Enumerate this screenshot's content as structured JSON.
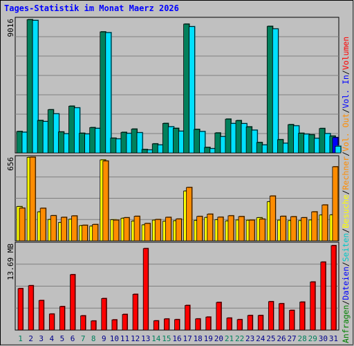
{
  "chart_data": {
    "type": "bar",
    "title": "Tages-Statistik im Monat Maerz 2026",
    "categories": [
      "1",
      "2",
      "3",
      "4",
      "5",
      "6",
      "7",
      "8",
      "9",
      "10",
      "11",
      "12",
      "13",
      "14",
      "15",
      "16",
      "17",
      "18",
      "19",
      "20",
      "21",
      "22",
      "23",
      "24",
      "25",
      "26",
      "27",
      "28",
      "29",
      "30",
      "31"
    ],
    "weekend_days": [
      "1",
      "7",
      "8",
      "14",
      "15",
      "21",
      "22",
      "28",
      "29"
    ],
    "panels": [
      {
        "id": "anfragen",
        "ymax": 9016,
        "ymax_label": "9016",
        "series": [
          {
            "name": "Anfragen",
            "color": "#00805c",
            "values": [
              1440,
              8950,
              2180,
              2900,
              1410,
              3140,
              1320,
              1700,
              8130,
              990,
              1380,
              1600,
              230,
              610,
              1980,
              1650,
              8650,
              1580,
              370,
              1340,
              2270,
              2170,
              1750,
              700,
              8500,
              890,
              1900,
              1320,
              1220,
              1640,
              1130
            ]
          },
          {
            "name": "Dateien",
            "color": "#0000ff",
            "values": [
              null,
              null,
              null,
              null,
              null,
              null,
              null,
              null,
              null,
              null,
              null,
              null,
              null,
              null,
              null,
              null,
              null,
              null,
              null,
              null,
              null,
              null,
              null,
              null,
              null,
              null,
              null,
              null,
              null,
              null,
              1030
            ]
          },
          {
            "name": "Seiten",
            "color": "#00e0ff",
            "values": [
              1390,
              8900,
              2110,
              2630,
              1290,
              3030,
              1270,
              1650,
              8080,
              940,
              1310,
              1360,
              200,
              540,
              1760,
              1460,
              8480,
              1440,
              290,
              1100,
              1980,
              1970,
              1530,
              540,
              8330,
              650,
              1820,
              1260,
              980,
              1300,
              450
            ]
          }
        ]
      },
      {
        "id": "besuche",
        "ymax": 656,
        "ymax_label": "656",
        "series": [
          {
            "name": "Besuche",
            "color": "#ffff00",
            "values": [
              268,
              654,
              227,
              167,
              143,
              169,
              119,
              115,
              634,
              165,
              177,
              155,
              125,
              162,
              153,
              157,
              390,
              160,
              183,
              165,
              156,
              163,
              161,
              181,
              306,
              162,
              158,
              158,
              163,
              202,
              203
            ]
          },
          {
            "name": "Rechner",
            "color": "#ff8c00",
            "values": [
              256,
              655,
              255,
              197,
              184,
              195,
              122,
              128,
              625,
              162,
              181,
              192,
              136,
              167,
              184,
              171,
              418,
              191,
              209,
              185,
              196,
              190,
              162,
              170,
              351,
              192,
              189,
              181,
              227,
              281,
              580
            ]
          }
        ]
      },
      {
        "id": "volumen",
        "ymax": 13.69,
        "ymax_label": "13.69 MB",
        "series": [
          {
            "name": "Volumen",
            "color": "#ff0000",
            "values": [
              6.57,
              7.03,
              4.68,
              2.54,
              3.72,
              8.77,
              2.26,
              1.44,
              4.99,
              1.62,
              2.48,
              5.66,
              12.9,
              1.46,
              1.76,
              1.66,
              3.9,
              1.77,
              2.06,
              4.38,
              1.9,
              1.66,
              2.31,
              2.31,
              4.5,
              4.18,
              3.12,
              4.43,
              7.61,
              10.76,
              13.37
            ]
          }
        ]
      }
    ],
    "legend": [
      {
        "label": "Anfragen",
        "color": "#008000"
      },
      {
        "label": "Dateien",
        "color": "#0000ff"
      },
      {
        "label": "Seiten",
        "color": "#00c8c8"
      },
      {
        "label": "Besuche",
        "color": "#ffff00"
      },
      {
        "label": "Rechner",
        "color": "#ff8c00"
      },
      {
        "label": "Vol. Out",
        "color": "#ff8c00"
      },
      {
        "label": "Vol. In",
        "color": "#0000ff"
      },
      {
        "label": "Volumen",
        "color": "#ff0000"
      }
    ],
    "legend_separator": "/",
    "legend_placement": "right, vertical",
    "colors": {
      "background": "#c0c0c0",
      "plot_background": "#c0c0c0",
      "grid": "#7f7f7f",
      "title": "#0000ff",
      "weekday_label": "#00008b",
      "weekend_label": "#00805c",
      "bar_outline": "#000000"
    },
    "grid": true
  }
}
